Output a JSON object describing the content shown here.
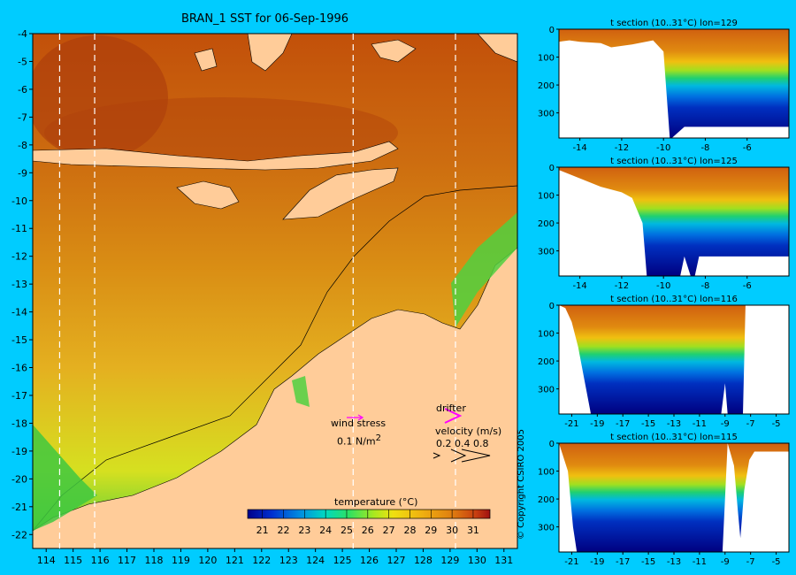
{
  "page": {
    "background": "#00ccff"
  },
  "chart_data": [
    {
      "type": "heatmap",
      "title": "BRAN_1 SST for 06-Sep-1996",
      "xlabel": "",
      "ylabel": "",
      "xlim": [
        113.5,
        131.5
      ],
      "ylim": [
        -22.5,
        -4
      ],
      "x_ticks": [
        114,
        115,
        116,
        117,
        118,
        119,
        120,
        121,
        122,
        123,
        124,
        125,
        126,
        127,
        128,
        129,
        130,
        131
      ],
      "y_ticks": [
        -4,
        -5,
        -6,
        -7,
        -8,
        -9,
        -10,
        -11,
        -12,
        -13,
        -14,
        -15,
        -16,
        -17,
        -18,
        -19,
        -20,
        -21,
        -22
      ],
      "section_lines_lon": [
        114.5,
        115.8,
        125.4,
        129.2
      ],
      "land_color": "#ffcc99",
      "colorbar": {
        "label": "temperature (°C)",
        "ticks": [
          21,
          22,
          23,
          24,
          25,
          26,
          27,
          28,
          29,
          30,
          31
        ],
        "range": [
          20.3,
          31.8
        ]
      },
      "legend": {
        "wind_stress_label": "wind stress",
        "wind_stress_value": "0.1 N/m",
        "wind_stress_exponent": "2",
        "drifter_label": "drifter",
        "velocity_label": "velocity (m/s)",
        "velocity_values": "0.2 0.4 0.8"
      },
      "copyright": "© Copyright CSIRO 2005"
    },
    {
      "type": "heatmap",
      "title": "t section (10..31°C) lon=129",
      "xlim": [
        -15,
        -4
      ],
      "ylim": [
        0,
        390
      ],
      "x_ticks": [
        -14,
        -12,
        -10,
        -8,
        -6
      ],
      "y_ticks": [
        0,
        100,
        200,
        300
      ],
      "bottom_depth": [
        [
          -15,
          45
        ],
        [
          -14.5,
          40
        ],
        [
          -14,
          45
        ],
        [
          -13,
          50
        ],
        [
          -12.5,
          65
        ],
        [
          -11.5,
          55
        ],
        [
          -10.5,
          40
        ],
        [
          -10,
          80
        ],
        [
          -9.7,
          390
        ],
        [
          -9.6,
          390
        ],
        [
          -9,
          350
        ],
        [
          -4,
          350
        ]
      ]
    },
    {
      "type": "heatmap",
      "title": "t section (10..31°C) lon=125",
      "xlim": [
        -15,
        -4
      ],
      "ylim": [
        0,
        390
      ],
      "x_ticks": [
        -14,
        -12,
        -10,
        -8,
        -6
      ],
      "y_ticks": [
        0,
        100,
        200,
        300
      ],
      "bottom_depth": [
        [
          -15,
          10
        ],
        [
          -14,
          40
        ],
        [
          -13,
          70
        ],
        [
          -12,
          90
        ],
        [
          -11.5,
          110
        ],
        [
          -11,
          200
        ],
        [
          -10.8,
          390
        ],
        [
          -9.2,
          390
        ],
        [
          -9,
          320
        ],
        [
          -8.7,
          390
        ],
        [
          -8.5,
          390
        ],
        [
          -8.3,
          320
        ],
        [
          -4,
          320
        ]
      ]
    },
    {
      "type": "heatmap",
      "title": "t section (10..31°C) lon=116",
      "xlim": [
        -22,
        -4
      ],
      "ylim": [
        0,
        390
      ],
      "x_ticks": [
        -21,
        -19,
        -17,
        -15,
        -13,
        -11,
        -9,
        -7,
        -5
      ],
      "y_ticks": [
        0,
        100,
        200,
        300
      ],
      "bottom_depth": [
        [
          -22,
          0
        ],
        [
          -21.5,
          10
        ],
        [
          -21,
          60
        ],
        [
          -20.5,
          150
        ],
        [
          -20,
          270
        ],
        [
          -19.5,
          390
        ],
        [
          -9.3,
          390
        ],
        [
          -9,
          280
        ],
        [
          -8.8,
          390
        ],
        [
          -7.6,
          390
        ],
        [
          -7.4,
          0
        ],
        [
          -4,
          0
        ]
      ]
    },
    {
      "type": "heatmap",
      "title": "t section (10..31°C) lon=115",
      "xlim": [
        -22,
        -4
      ],
      "ylim": [
        0,
        390
      ],
      "x_ticks": [
        -21,
        -19,
        -17,
        -15,
        -13,
        -11,
        -9,
        -7,
        -5
      ],
      "y_ticks": [
        0,
        100,
        200,
        300
      ],
      "bottom_depth": [
        [
          -22,
          0
        ],
        [
          -21.3,
          100
        ],
        [
          -20.9,
          300
        ],
        [
          -20.6,
          390
        ],
        [
          -9.2,
          390
        ],
        [
          -8.8,
          0
        ],
        [
          -8.3,
          80
        ],
        [
          -8,
          240
        ],
        [
          -7.8,
          340
        ],
        [
          -7.5,
          170
        ],
        [
          -7.1,
          60
        ],
        [
          -6.7,
          30
        ],
        [
          -4,
          30
        ]
      ]
    }
  ]
}
